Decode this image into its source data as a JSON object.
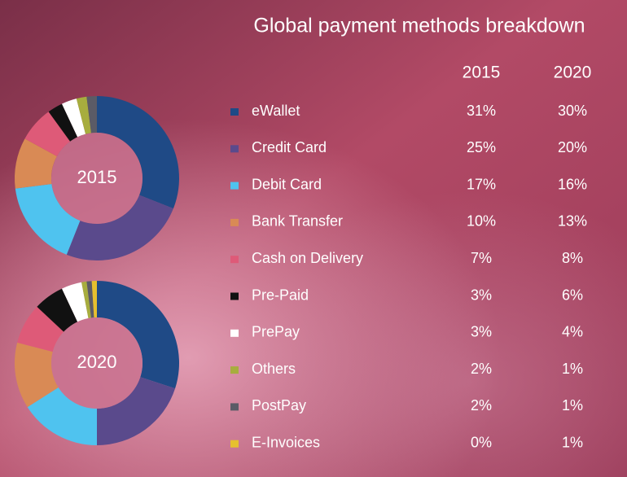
{
  "chart_data": {
    "type": "donut",
    "title": "Global payment methods breakdown",
    "categories": [
      "eWallet",
      "Credit Card",
      "Debit Card",
      "Bank Transfer",
      "Cash on Delivery",
      "Pre-Paid",
      "PrePay",
      "Others",
      "PostPay",
      "E-Invoices"
    ],
    "colors": [
      "#1f4a86",
      "#5a4a8c",
      "#4fc3ef",
      "#d98a55",
      "#de5a78",
      "#111111",
      "#ffffff",
      "#a7ad3e",
      "#5b5b66",
      "#e6c02e"
    ],
    "series": [
      {
        "name": "2015",
        "values": [
          31,
          25,
          17,
          10,
          7,
          3,
          3,
          2,
          2,
          0
        ],
        "value_labels": [
          "31%",
          "25%",
          "17%",
          "10%",
          "7%",
          "3%",
          "3%",
          "2%",
          "2%",
          "0%"
        ]
      },
      {
        "name": "2020",
        "values": [
          30,
          20,
          16,
          13,
          8,
          6,
          4,
          1,
          1,
          1
        ],
        "value_labels": [
          "30%",
          "20%",
          "16%",
          "13%",
          "8%",
          "6%",
          "4%",
          "1%",
          "1%",
          "1%"
        ]
      }
    ]
  }
}
